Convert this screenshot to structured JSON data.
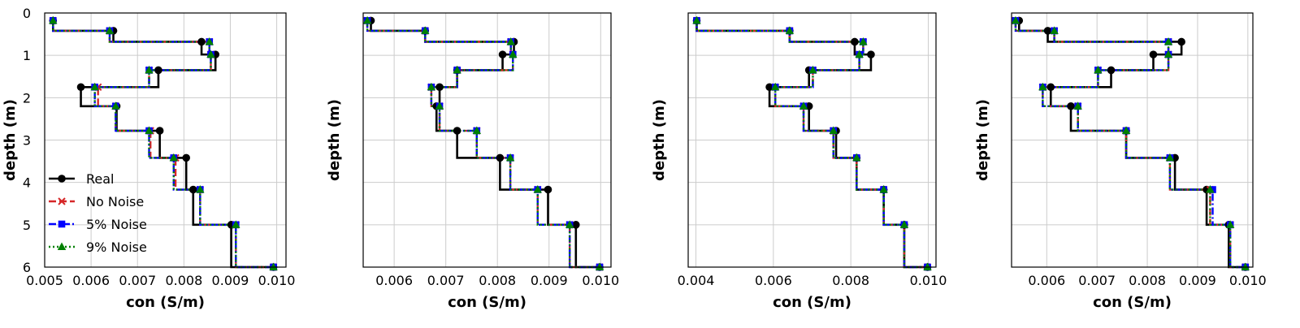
{
  "chart_data": [
    {
      "type": "line",
      "xlabel": "con (S/m)",
      "ylabel": "depth (m)",
      "xlim": [
        0.005,
        0.0102
      ],
      "ylim": [
        6,
        0
      ],
      "xticks": [
        0.005,
        0.006,
        0.007,
        0.008,
        0.009,
        0.01
      ],
      "xtick_labels": [
        "0.005",
        "0.006",
        "0.007",
        "0.008",
        "0.009",
        "0.010"
      ],
      "yticks": [
        0,
        1,
        2,
        3,
        4,
        5,
        6
      ],
      "ytick_labels": [
        "0",
        "1",
        "2",
        "3",
        "4",
        "5",
        "6"
      ],
      "grid": true,
      "legend": "lower-left",
      "depth": [
        0.18,
        0.42,
        0.68,
        0.98,
        1.35,
        1.75,
        2.2,
        2.78,
        3.42,
        4.17,
        5.0,
        6.0
      ],
      "series": [
        {
          "name": "Real",
          "values": [
            0.00518,
            0.00648,
            0.00838,
            0.00868,
            0.00745,
            0.00578,
            0.00655,
            0.00748,
            0.00805,
            0.0082,
            0.00902,
            0.00993
          ]
        },
        {
          "name": "No Noise",
          "values": [
            0.00518,
            0.0064,
            0.00855,
            0.00858,
            0.00725,
            0.00615,
            0.00653,
            0.00728,
            0.00782,
            0.00835,
            0.00912,
            0.00993
          ]
        },
        {
          "name": "5% Noise",
          "values": [
            0.00518,
            0.0064,
            0.00855,
            0.00858,
            0.00725,
            0.00608,
            0.00653,
            0.00725,
            0.00778,
            0.00835,
            0.00912,
            0.00993
          ]
        },
        {
          "name": "9% Noise",
          "values": [
            0.00518,
            0.0064,
            0.00855,
            0.00858,
            0.00725,
            0.00608,
            0.00653,
            0.00725,
            0.00778,
            0.00835,
            0.00912,
            0.00993
          ]
        }
      ]
    },
    {
      "type": "line",
      "xlabel": "con (S/m)",
      "ylabel": "depth (m)",
      "xlim": [
        0.0054,
        0.0102
      ],
      "ylim": [
        6,
        0
      ],
      "xticks": [
        0.006,
        0.007,
        0.008,
        0.009,
        0.01
      ],
      "xtick_labels": [
        "0.006",
        "0.007",
        "0.008",
        "0.009",
        "0.010"
      ],
      "yticks": [
        1,
        2,
        3,
        4,
        5
      ],
      "ytick_labels": [],
      "grid": true,
      "legend": "none",
      "depth": [
        0.18,
        0.42,
        0.68,
        0.98,
        1.35,
        1.75,
        2.2,
        2.78,
        3.42,
        4.17,
        5.0,
        6.0
      ],
      "series": [
        {
          "name": "Real",
          "values": [
            0.00555,
            0.0066,
            0.00832,
            0.0081,
            0.00722,
            0.00688,
            0.00682,
            0.00722,
            0.00805,
            0.00898,
            0.00952,
            0.00998
          ]
        },
        {
          "name": "No Noise",
          "values": [
            0.00548,
            0.0066,
            0.00826,
            0.0083,
            0.00722,
            0.00672,
            0.00688,
            0.0076,
            0.00825,
            0.00878,
            0.0094,
            0.00998
          ]
        },
        {
          "name": "5% Noise",
          "values": [
            0.00548,
            0.0066,
            0.00826,
            0.0083,
            0.00722,
            0.00672,
            0.00688,
            0.0076,
            0.00825,
            0.00878,
            0.0094,
            0.00998
          ]
        },
        {
          "name": "9% Noise",
          "values": [
            0.00548,
            0.0066,
            0.00826,
            0.0083,
            0.00722,
            0.00672,
            0.00688,
            0.0076,
            0.00825,
            0.00878,
            0.0094,
            0.00998
          ]
        }
      ]
    },
    {
      "type": "line",
      "xlabel": "con (S/m)",
      "ylabel": "depth (m)",
      "xlim": [
        0.0038,
        0.0102
      ],
      "ylim": [
        6,
        0
      ],
      "xticks": [
        0.004,
        0.006,
        0.008,
        0.01
      ],
      "xtick_labels": [
        "0.004",
        "0.006",
        "0.008",
        "0.010"
      ],
      "yticks": [
        1,
        2,
        3,
        4,
        5
      ],
      "ytick_labels": [],
      "grid": true,
      "legend": "none",
      "depth": [
        0.18,
        0.42,
        0.68,
        0.98,
        1.35,
        1.75,
        2.2,
        2.78,
        3.42,
        4.17,
        5.0,
        6.0
      ],
      "series": [
        {
          "name": "Real",
          "values": [
            0.00402,
            0.00642,
            0.0081,
            0.00852,
            0.00692,
            0.0059,
            0.00692,
            0.00762,
            0.00815,
            0.00885,
            0.00938,
            0.00998
          ]
        },
        {
          "name": "No Noise",
          "values": [
            0.00402,
            0.00642,
            0.00832,
            0.00822,
            0.00702,
            0.00605,
            0.00678,
            0.00755,
            0.00815,
            0.00885,
            0.00938,
            0.00998
          ]
        },
        {
          "name": "5% Noise",
          "values": [
            0.00402,
            0.00642,
            0.00832,
            0.00822,
            0.00702,
            0.00605,
            0.00678,
            0.00755,
            0.00815,
            0.00885,
            0.00938,
            0.00998
          ]
        },
        {
          "name": "9% Noise",
          "values": [
            0.00402,
            0.00642,
            0.00832,
            0.00822,
            0.00702,
            0.00605,
            0.00678,
            0.00755,
            0.00815,
            0.00885,
            0.00938,
            0.00998
          ]
        }
      ]
    },
    {
      "type": "line",
      "xlabel": "con (S/m)",
      "ylabel": "depth (m)",
      "xlim": [
        0.0053,
        0.0101
      ],
      "ylim": [
        6,
        0
      ],
      "xticks": [
        0.006,
        0.007,
        0.008,
        0.009,
        0.01
      ],
      "xtick_labels": [
        "0.006",
        "0.007",
        "0.008",
        "0.009",
        "0.010"
      ],
      "yticks": [
        1,
        2,
        3,
        4,
        5
      ],
      "ytick_labels": [],
      "grid": true,
      "legend": "none",
      "depth": [
        0.18,
        0.42,
        0.68,
        0.98,
        1.35,
        1.75,
        2.2,
        2.78,
        3.42,
        4.17,
        5.0,
        6.0
      ],
      "series": [
        {
          "name": "Real",
          "values": [
            0.00545,
            0.00602,
            0.00868,
            0.00812,
            0.00728,
            0.00608,
            0.00648,
            0.00758,
            0.00855,
            0.00918,
            0.00962,
            0.00995
          ]
        },
        {
          "name": "No Noise",
          "values": [
            0.00538,
            0.00615,
            0.00842,
            0.00842,
            0.00702,
            0.00592,
            0.00662,
            0.00758,
            0.00845,
            0.00925,
            0.00965,
            0.00995
          ]
        },
        {
          "name": "5% Noise",
          "values": [
            0.00538,
            0.00615,
            0.00842,
            0.00842,
            0.00702,
            0.00592,
            0.00662,
            0.00758,
            0.00845,
            0.0093,
            0.00965,
            0.00995
          ]
        },
        {
          "name": "9% Noise",
          "values": [
            0.00538,
            0.00615,
            0.00842,
            0.00842,
            0.00702,
            0.00592,
            0.00662,
            0.00758,
            0.00845,
            0.00925,
            0.00965,
            0.00995
          ]
        }
      ]
    }
  ],
  "series_styles": [
    {
      "color": "#000000",
      "marker": "circle",
      "dash": "solid"
    },
    {
      "color": "#d62728",
      "marker": "x",
      "dash": "dashed"
    },
    {
      "color": "#0000ff",
      "marker": "square",
      "dash": "dashdot"
    },
    {
      "color": "#008000",
      "marker": "triangle",
      "dash": "dotted"
    }
  ]
}
